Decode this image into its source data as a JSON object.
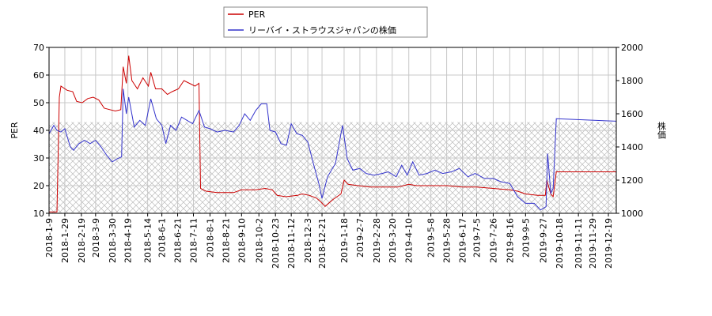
{
  "chart_data": {
    "type": "line",
    "y_label": "PER",
    "y2_label": "株価",
    "grid": true,
    "legend": "top",
    "hatch_band": [
      10,
      43
    ],
    "xlim": [
      "2018-1-9",
      "2019-12-29"
    ],
    "xticks": [
      "2018-1-9",
      "2018-1-29",
      "2018-2-19",
      "2018-3-9",
      "2018-3-30",
      "2018-4-19",
      "2018-5-14",
      "2018-6-1",
      "2018-6-21",
      "2018-7-11",
      "2018-8-1",
      "2018-8-21",
      "2018-9-10",
      "2018-10-2",
      "2018-10-23",
      "2018-11-12",
      "2018-12-3",
      "2018-12-21",
      "2019-1-18",
      "2019-2-7",
      "2019-2-28",
      "2019-3-20",
      "2019-4-10",
      "2019-5-8",
      "2019-5-28",
      "2019-6-17",
      "2019-7-5",
      "2019-7-26",
      "2019-8-16",
      "2019-9-5",
      "2019-9-27",
      "2019-10-18",
      "2019-11-11",
      "2019-11-29",
      "2019-12-19"
    ],
    "ylim": [
      10,
      70
    ],
    "yticks": [
      10,
      20,
      30,
      40,
      50,
      60,
      70
    ],
    "y2lim": [
      1000,
      2000
    ],
    "y2ticks": [
      1000,
      1200,
      1400,
      1600,
      1800,
      2000
    ],
    "series": [
      {
        "name": "PER",
        "color": "#cc0000",
        "x": [
          "2018-1-9",
          "2018-1-19",
          "2018-1-22",
          "2018-1-24",
          "2018-2-1",
          "2018-2-8",
          "2018-2-13",
          "2018-2-20",
          "2018-2-27",
          "2018-3-6",
          "2018-3-13",
          "2018-3-20",
          "2018-3-27",
          "2018-4-3",
          "2018-4-10",
          "2018-4-13",
          "2018-4-17",
          "2018-4-20",
          "2018-4-24",
          "2018-5-1",
          "2018-5-8",
          "2018-5-15",
          "2018-5-18",
          "2018-5-24",
          "2018-6-1",
          "2018-6-8",
          "2018-6-14",
          "2018-6-22",
          "2018-6-29",
          "2018-7-6",
          "2018-7-13",
          "2018-7-18",
          "2018-7-20",
          "2018-7-27",
          "2018-8-10",
          "2018-8-31",
          "2018-9-10",
          "2018-9-28",
          "2018-10-10",
          "2018-10-19",
          "2018-10-25",
          "2018-11-5",
          "2018-11-20",
          "2018-11-26",
          "2018-12-5",
          "2018-12-14",
          "2018-12-20",
          "2018-12-25",
          "2019-1-4",
          "2019-1-14",
          "2019-1-18",
          "2019-1-23",
          "2019-2-5",
          "2019-2-20",
          "2019-3-10",
          "2019-3-27",
          "2019-4-10",
          "2019-4-20",
          "2019-5-10",
          "2019-5-28",
          "2019-6-17",
          "2019-7-5",
          "2019-7-26",
          "2019-8-16",
          "2019-8-26",
          "2019-9-5",
          "2019-9-20",
          "2019-9-30",
          "2019-10-2",
          "2019-10-7",
          "2019-10-10",
          "2019-10-14",
          "2019-12-29"
        ],
        "values": [
          10.5,
          10.5,
          52,
          56,
          54.5,
          54,
          50.5,
          50,
          51.5,
          52,
          51,
          48,
          47.5,
          47,
          47.5,
          63,
          57,
          67,
          58,
          55,
          59,
          56,
          61,
          55,
          55,
          53,
          54,
          55,
          58,
          57,
          56,
          57,
          19,
          18,
          17.5,
          17.5,
          18.5,
          18.5,
          19,
          18.5,
          16.5,
          16,
          16.5,
          17,
          16.5,
          15.5,
          14,
          12.5,
          15,
          17,
          22,
          20.5,
          20,
          19.5,
          19.5,
          19.5,
          20.5,
          20,
          20,
          20,
          19.5,
          19.5,
          19,
          18.5,
          18,
          17,
          16.5,
          16.5,
          22,
          17,
          16,
          25,
          25
        ]
      },
      {
        "name": "リーバイ・ストラウスジャパンの株価",
        "color": "#3333cc",
        "axis": "y2",
        "x": [
          "2018-1-9",
          "2018-1-15",
          "2018-1-19",
          "2018-1-24",
          "2018-1-29",
          "2018-2-5",
          "2018-2-9",
          "2018-2-16",
          "2018-2-23",
          "2018-3-2",
          "2018-3-9",
          "2018-3-16",
          "2018-3-23",
          "2018-3-30",
          "2018-4-6",
          "2018-4-11",
          "2018-4-13",
          "2018-4-17",
          "2018-4-20",
          "2018-4-27",
          "2018-5-4",
          "2018-5-11",
          "2018-5-18",
          "2018-5-25",
          "2018-6-1",
          "2018-6-6",
          "2018-6-12",
          "2018-6-19",
          "2018-6-26",
          "2018-7-3",
          "2018-7-10",
          "2018-7-13",
          "2018-7-18",
          "2018-7-25",
          "2018-8-1",
          "2018-8-10",
          "2018-8-20",
          "2018-8-31",
          "2018-9-7",
          "2018-9-14",
          "2018-9-21",
          "2018-9-28",
          "2018-10-5",
          "2018-10-12",
          "2018-10-16",
          "2018-10-23",
          "2018-10-30",
          "2018-11-6",
          "2018-11-12",
          "2018-11-19",
          "2018-11-26",
          "2018-12-3",
          "2018-12-10",
          "2018-12-17",
          "2018-12-21",
          "2018-12-28",
          "2019-1-7",
          "2019-1-14",
          "2019-1-16",
          "2019-1-22",
          "2019-1-29",
          "2019-2-7",
          "2019-2-15",
          "2019-2-25",
          "2019-3-7",
          "2019-3-15",
          "2019-3-25",
          "2019-4-1",
          "2019-4-8",
          "2019-4-15",
          "2019-4-23",
          "2019-5-3",
          "2019-5-13",
          "2019-5-23",
          "2019-6-3",
          "2019-6-13",
          "2019-6-24",
          "2019-7-3",
          "2019-7-15",
          "2019-7-26",
          "2019-8-5",
          "2019-8-16",
          "2019-8-26",
          "2019-9-5",
          "2019-9-16",
          "2019-9-24",
          "2019-10-1",
          "2019-10-3",
          "2019-10-7",
          "2019-10-10",
          "2019-10-14",
          "2019-12-29"
        ],
        "values": [
          1480,
          1530,
          1500,
          1490,
          1510,
          1400,
          1380,
          1420,
          1440,
          1420,
          1440,
          1400,
          1350,
          1310,
          1330,
          1340,
          1750,
          1600,
          1700,
          1520,
          1560,
          1530,
          1690,
          1570,
          1530,
          1420,
          1530,
          1500,
          1580,
          1560,
          1540,
          1570,
          1620,
          1520,
          1510,
          1490,
          1500,
          1490,
          1530,
          1600,
          1560,
          1620,
          1660,
          1660,
          1500,
          1490,
          1420,
          1410,
          1540,
          1480,
          1470,
          1430,
          1300,
          1180,
          1090,
          1220,
          1300,
          1480,
          1530,
          1330,
          1260,
          1270,
          1240,
          1230,
          1240,
          1250,
          1220,
          1290,
          1230,
          1310,
          1230,
          1240,
          1260,
          1240,
          1250,
          1270,
          1220,
          1240,
          1210,
          1210,
          1190,
          1180,
          1100,
          1060,
          1060,
          1020,
          1040,
          1360,
          1120,
          1150,
          1570,
          1555
        ]
      }
    ]
  }
}
